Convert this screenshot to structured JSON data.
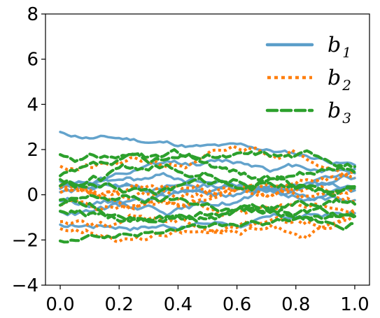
{
  "chart_data": {
    "type": "line",
    "xlim": [
      -0.05,
      1.05
    ],
    "ylim": [
      -4,
      8
    ],
    "xticks": [
      0.0,
      0.2,
      0.4,
      0.6,
      0.8,
      1.0
    ],
    "xtick_labels": [
      "0.0",
      "0.2",
      "0.4",
      "0.6",
      "0.8",
      "1.0"
    ],
    "yticks": [
      -4,
      -2,
      0,
      2,
      4,
      6,
      8
    ],
    "ytick_labels": [
      "−4",
      "−2",
      "0",
      "2",
      "4",
      "6",
      "8"
    ],
    "grid": false,
    "legend_placement": "top-right",
    "legend": [
      {
        "base": "b",
        "sub": "1",
        "color": "#5b9ec9",
        "style": "solid"
      },
      {
        "base": "b",
        "sub": "2",
        "color": "#ff7f0e",
        "style": "dotted"
      },
      {
        "base": "b",
        "sub": "3",
        "color": "#2ca02c",
        "style": "dashed"
      }
    ],
    "series": [
      {
        "group": 1,
        "color": "#5b9ec9",
        "style": "solid",
        "start": 2.8,
        "end": 1.4,
        "amp": 0.22,
        "seed": 11
      },
      {
        "group": 1,
        "color": "#5b9ec9",
        "style": "solid",
        "start": 0.6,
        "end": 1.2,
        "amp": 0.3,
        "seed": 12
      },
      {
        "group": 1,
        "color": "#5b9ec9",
        "style": "solid",
        "start": 0.2,
        "end": 0.9,
        "amp": 0.3,
        "seed": 13
      },
      {
        "group": 1,
        "color": "#5b9ec9",
        "style": "solid",
        "start": 0.0,
        "end": 0.6,
        "amp": 0.35,
        "seed": 14
      },
      {
        "group": 1,
        "color": "#5b9ec9",
        "style": "solid",
        "start": -0.3,
        "end": 0.2,
        "amp": 0.35,
        "seed": 15
      },
      {
        "group": 1,
        "color": "#5b9ec9",
        "style": "solid",
        "start": -0.6,
        "end": -0.2,
        "amp": 0.35,
        "seed": 16
      },
      {
        "group": 1,
        "color": "#5b9ec9",
        "style": "solid",
        "start": -1.3,
        "end": -0.7,
        "amp": 0.3,
        "seed": 17
      },
      {
        "group": 1,
        "color": "#5b9ec9",
        "style": "solid",
        "start": 0.4,
        "end": 0.3,
        "amp": 0.35,
        "seed": 18
      },
      {
        "group": 2,
        "color": "#ff7f0e",
        "style": "dotted",
        "start": 1.2,
        "end": 0.8,
        "amp": 0.4,
        "seed": 21
      },
      {
        "group": 2,
        "color": "#ff7f0e",
        "style": "dotted",
        "start": 0.6,
        "end": 0.3,
        "amp": 0.4,
        "seed": 22
      },
      {
        "group": 2,
        "color": "#ff7f0e",
        "style": "dotted",
        "start": 0.1,
        "end": -0.2,
        "amp": 0.4,
        "seed": 23
      },
      {
        "group": 2,
        "color": "#ff7f0e",
        "style": "dotted",
        "start": -0.4,
        "end": -0.5,
        "amp": 0.4,
        "seed": 24
      },
      {
        "group": 2,
        "color": "#ff7f0e",
        "style": "dotted",
        "start": -1.2,
        "end": -0.8,
        "amp": 0.4,
        "seed": 25
      },
      {
        "group": 2,
        "color": "#ff7f0e",
        "style": "dotted",
        "start": -1.6,
        "end": -1.0,
        "amp": 0.4,
        "seed": 26
      },
      {
        "group": 2,
        "color": "#ff7f0e",
        "style": "dotted",
        "start": 0.3,
        "end": 0.6,
        "amp": 0.4,
        "seed": 27
      },
      {
        "group": 3,
        "color": "#2ca02c",
        "style": "dashed",
        "start": 1.8,
        "end": 1.3,
        "amp": 0.35,
        "seed": 31
      },
      {
        "group": 3,
        "color": "#2ca02c",
        "style": "dashed",
        "start": 0.6,
        "end": 0.9,
        "amp": 0.4,
        "seed": 32
      },
      {
        "group": 3,
        "color": "#2ca02c",
        "style": "dashed",
        "start": 0.3,
        "end": 0.2,
        "amp": 0.4,
        "seed": 33
      },
      {
        "group": 3,
        "color": "#2ca02c",
        "style": "dashed",
        "start": -0.2,
        "end": -0.5,
        "amp": 0.4,
        "seed": 34
      },
      {
        "group": 3,
        "color": "#2ca02c",
        "style": "dashed",
        "start": -0.8,
        "end": -1.2,
        "amp": 0.4,
        "seed": 35
      },
      {
        "group": 3,
        "color": "#2ca02c",
        "style": "dashed",
        "start": -2.0,
        "end": -0.9,
        "amp": 0.25,
        "seed": 36
      },
      {
        "group": 3,
        "color": "#2ca02c",
        "style": "dashed",
        "start": 0.9,
        "end": 0.4,
        "amp": 0.4,
        "seed": 37
      },
      {
        "group": 3,
        "color": "#2ca02c",
        "style": "dashed",
        "start": -0.5,
        "end": -1.0,
        "amp": 0.4,
        "seed": 38
      }
    ]
  }
}
